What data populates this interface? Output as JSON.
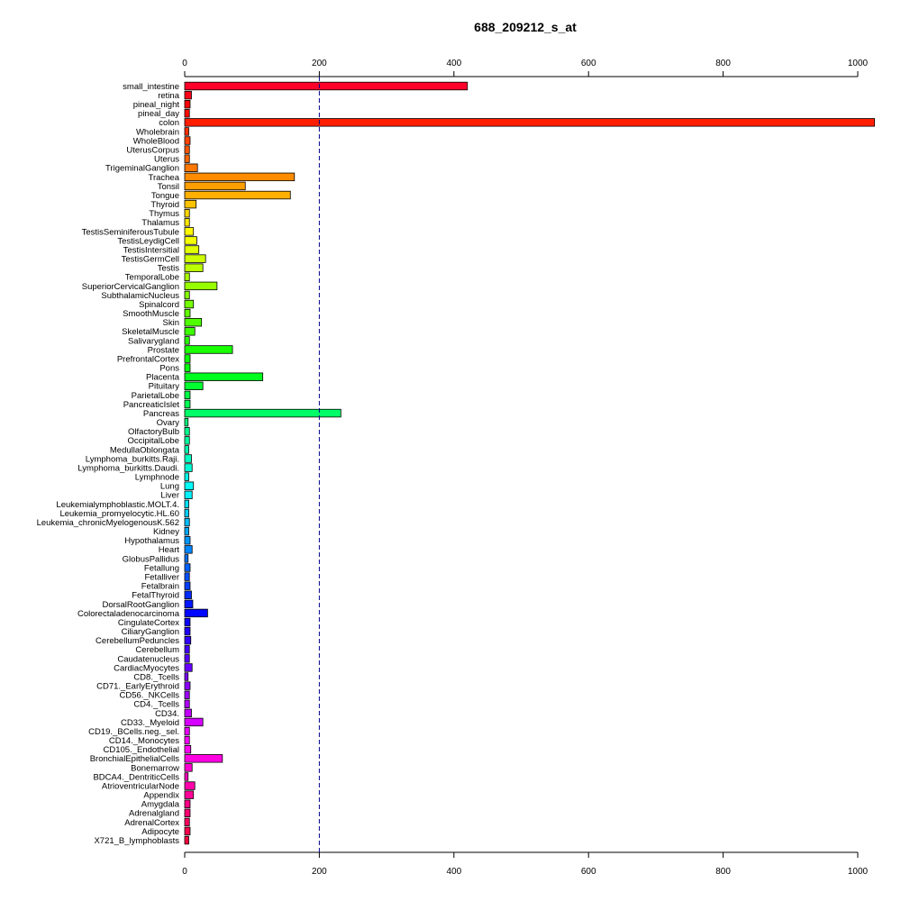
{
  "chart_data": {
    "type": "bar",
    "orientation": "horizontal",
    "title": "688_209212_s_at",
    "xlabel": "",
    "ylabel": "",
    "xlim": [
      0,
      1000
    ],
    "xticks": [
      0,
      200,
      400,
      600,
      800,
      1000
    ],
    "reference_line": 200,
    "grid": false,
    "categories": [
      "small_intestine",
      "retina",
      "pineal_night",
      "pineal_day",
      "colon",
      "Wholebrain",
      "WholeBlood",
      "UterusCorpus",
      "Uterus",
      "TrigeminalGanglion",
      "Trachea",
      "Tonsil",
      "Tongue",
      "Thyroid",
      "Thymus",
      "Thalamus",
      "TestisSeminiferousTubule",
      "TestisLeydigCell",
      "TestisIntersitial",
      "TestisGermCell",
      "Testis",
      "TemporalLobe",
      "SuperiorCervicalGanglion",
      "SubthalamicNucleus",
      "Spinalcord",
      "SmoothMuscle",
      "Skin",
      "SkeletalMuscle",
      "Salivarygland",
      "Prostate",
      "PrefrontalCortex",
      "Pons",
      "Placenta",
      "Pituitary",
      "ParietalLobe",
      "PancreaticIslet",
      "Pancreas",
      "Ovary",
      "OlfactoryBulb",
      "OccipitalLobe",
      "MedullaOblongata",
      "Lymphoma_burkitts.Raji.",
      "Lymphoma_burkitts.Daudi.",
      "Lymphnode",
      "Lung",
      "Liver",
      "Leukemialymphoblastic.MOLT.4.",
      "Leukemia_promyelocytic.HL.60",
      "Leukemia_chronicMyelogenousK.562",
      "Kidney",
      "Hypothalamus",
      "Heart",
      "GlobusPallidus",
      "Fetallung",
      "Fetalliver",
      "Fetalbrain",
      "FetalThyroid",
      "DorsalRootGanglion",
      "Colorectaladenocarcinoma",
      "CingulateCortex",
      "CiliaryGanglion",
      "CerebellumPeduncles",
      "Cerebellum",
      "Caudatenucleus",
      "CardiacMyocytes",
      "CD8._Tcells",
      "CD71._EarlyErythroid",
      "CD56._NKCells",
      "CD4._Tcells",
      "CD34.",
      "CD33._Myeloid",
      "CD19._BCells.neg._sel.",
      "CD14._Monocytes",
      "CD105._Endothelial",
      "BronchialEpithelialCells",
      "Bonemarrow",
      "BDCA4._DentriticCells",
      "AtrioventricularNode",
      "Appendix",
      "Amygdala",
      "Adrenalgland",
      "AdrenalCortex",
      "Adipocyte",
      "X721_B_lymphoblasts"
    ],
    "values": [
      420,
      10,
      8,
      7,
      1025,
      6,
      8,
      7,
      7,
      19,
      163,
      90,
      157,
      17,
      7,
      7,
      13,
      18,
      21,
      31,
      27,
      7,
      48,
      7,
      13,
      8,
      25,
      15,
      7,
      71,
      8,
      8,
      116,
      27,
      8,
      8,
      232,
      5,
      7,
      7,
      6,
      10,
      11,
      6,
      13,
      11,
      6,
      6,
      7,
      6,
      8,
      11,
      5,
      8,
      7,
      8,
      10,
      12,
      34,
      8,
      8,
      9,
      7,
      7,
      11,
      5,
      8,
      7,
      7,
      10,
      27,
      7,
      7,
      9,
      56,
      11,
      5,
      15,
      13,
      8,
      8,
      7,
      8,
      6
    ]
  }
}
